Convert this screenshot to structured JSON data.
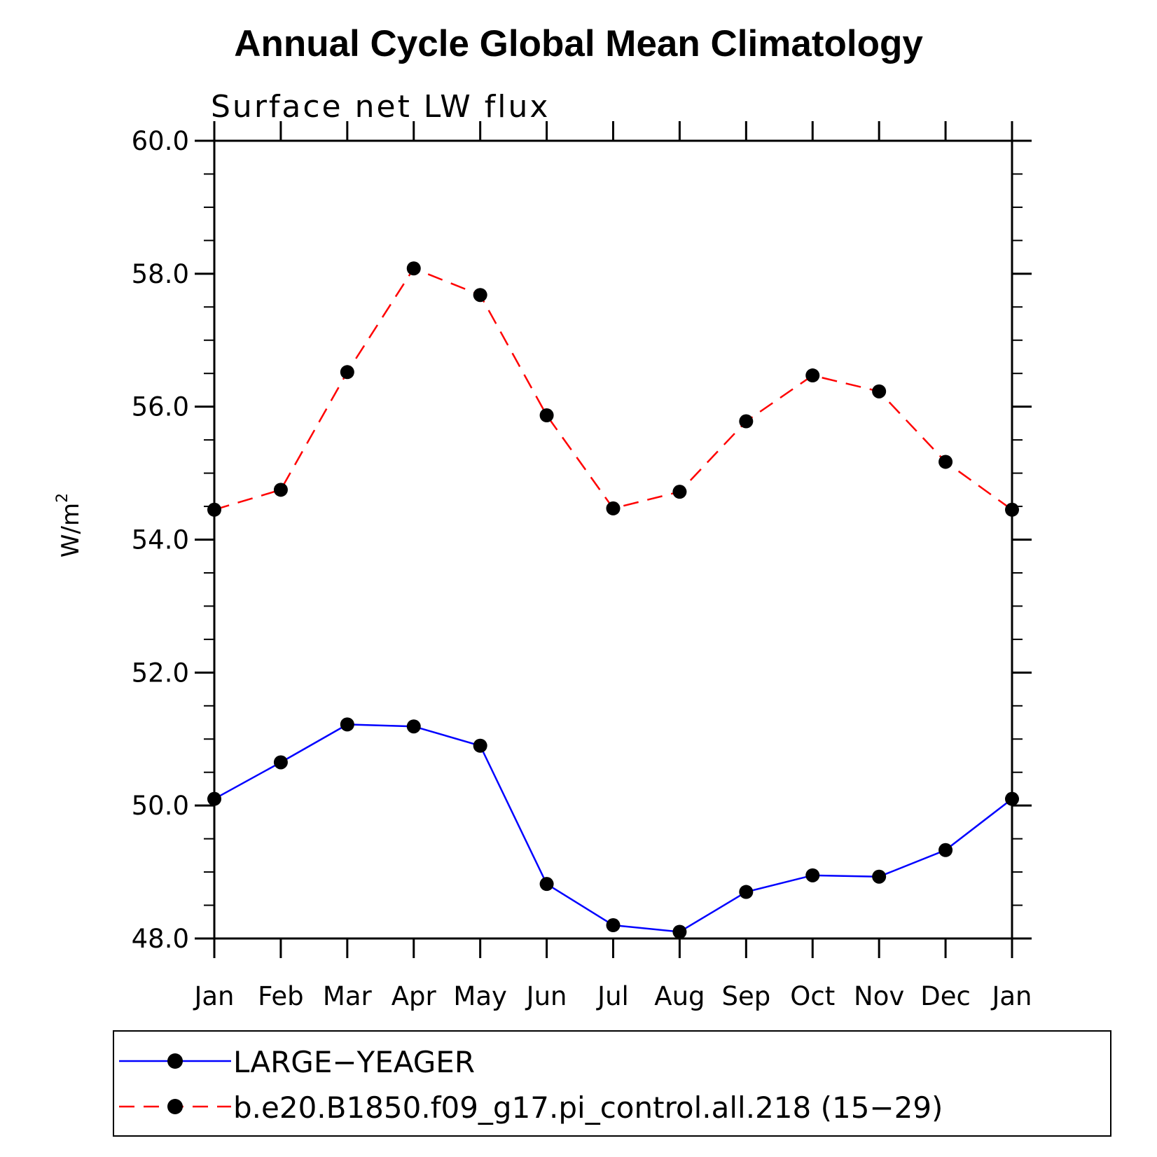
{
  "chart_data": {
    "type": "line",
    "title": "Annual Cycle Global Mean Climatology",
    "subtitle": "Surface net LW flux",
    "xlabel": "",
    "ylabel": "W/m",
    "ylabel_superscript": "2",
    "categories": [
      "Jan",
      "Feb",
      "Mar",
      "Apr",
      "May",
      "Jun",
      "Jul",
      "Aug",
      "Sep",
      "Oct",
      "Nov",
      "Dec",
      "Jan"
    ],
    "ylim": [
      48.0,
      60.0
    ],
    "yticks": [
      "48.0",
      "50.0",
      "52.0",
      "54.0",
      "56.0",
      "58.0",
      "60.0"
    ],
    "grid": false,
    "legend_position": "bottom",
    "series": [
      {
        "name": "LARGE−YEAGER",
        "color": "#0000ff",
        "line_style": "solid",
        "marker": "filled-circle",
        "values": [
          50.1,
          50.65,
          51.22,
          51.19,
          50.9,
          48.82,
          48.2,
          48.1,
          48.7,
          48.95,
          48.93,
          49.33,
          50.1
        ]
      },
      {
        "name": "b.e20.B1850.f09_g17.pi_control.all.218 (15−29)",
        "color": "#ff0000",
        "line_style": "dashed",
        "marker": "filled-circle",
        "values": [
          54.45,
          54.75,
          56.52,
          58.08,
          57.68,
          55.87,
          54.47,
          54.72,
          55.78,
          56.47,
          56.23,
          55.17,
          54.45
        ]
      }
    ]
  }
}
